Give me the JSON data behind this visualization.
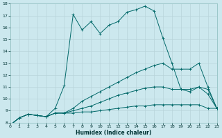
{
  "xlabel": "Humidex (Indice chaleur)",
  "bg_color": "#cce8ee",
  "grid_color": "#b8d4da",
  "line_color": "#006868",
  "xlim": [
    0,
    23
  ],
  "ylim": [
    8,
    18
  ],
  "xticks": [
    0,
    1,
    2,
    3,
    4,
    5,
    6,
    7,
    8,
    9,
    10,
    11,
    12,
    13,
    14,
    15,
    16,
    17,
    18,
    19,
    20,
    21,
    22,
    23
  ],
  "yticks": [
    8,
    9,
    10,
    11,
    12,
    13,
    14,
    15,
    16,
    17,
    18
  ],
  "series": [
    [
      7.8,
      8.4,
      8.7,
      8.6,
      8.5,
      8.8,
      8.8,
      8.8,
      8.9,
      8.9,
      9.0,
      9.1,
      9.2,
      9.3,
      9.4,
      9.4,
      9.5,
      9.5,
      9.5,
      9.5,
      9.5,
      9.5,
      9.2,
      9.2
    ],
    [
      7.8,
      8.4,
      8.7,
      8.6,
      8.5,
      8.8,
      8.8,
      9.0,
      9.2,
      9.4,
      9.7,
      10.0,
      10.3,
      10.5,
      10.7,
      10.9,
      11.0,
      11.0,
      10.8,
      10.8,
      10.8,
      11.0,
      10.8,
      9.2
    ],
    [
      7.8,
      8.4,
      8.7,
      8.6,
      8.5,
      8.8,
      8.8,
      9.2,
      9.8,
      10.2,
      10.6,
      11.0,
      11.4,
      11.8,
      12.2,
      12.5,
      12.8,
      13.0,
      12.5,
      12.5,
      12.5,
      13.0,
      11.0,
      9.2
    ],
    [
      7.8,
      8.4,
      8.7,
      8.6,
      8.5,
      9.2,
      11.1,
      17.1,
      15.8,
      16.5,
      15.5,
      16.2,
      16.5,
      17.3,
      17.5,
      17.8,
      17.4,
      15.1,
      13.0,
      10.8,
      10.6,
      11.0,
      10.4,
      9.2
    ]
  ]
}
